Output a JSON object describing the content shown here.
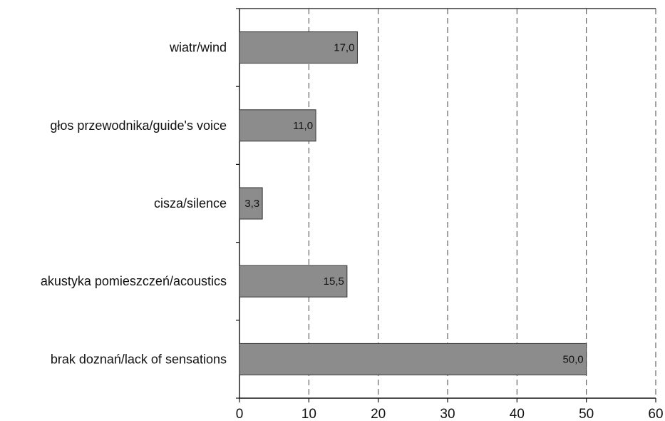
{
  "chart_data": {
    "type": "bar",
    "orientation": "horizontal",
    "categories": [
      "wiatr/wind",
      "głos przewodnika/guide's voice",
      "cisza/silence",
      "akustyka pomieszczeń/acoustics",
      "brak doznań/lack of sensations"
    ],
    "values": [
      17.0,
      11.0,
      3.3,
      15.5,
      50.0
    ],
    "data_labels": [
      "17,0",
      "11,0",
      "3,3",
      "15,5",
      "50,0"
    ],
    "xlim": [
      0,
      60
    ],
    "xticks": [
      0,
      10,
      20,
      30,
      40,
      50,
      60
    ],
    "xtick_labels": [
      "0",
      "10",
      "20",
      "30",
      "40",
      "50",
      "60"
    ],
    "grid": "vertical dashed",
    "bar_color": "#8c8c8c",
    "title": "",
    "xlabel": "",
    "ylabel": ""
  }
}
